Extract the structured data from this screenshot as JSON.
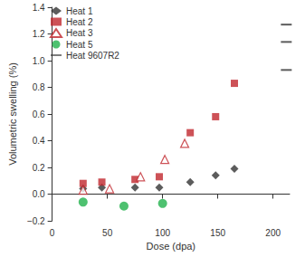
{
  "chart_data": {
    "type": "scatter",
    "x_label": "Dose (dpa)",
    "y_label": "Volumetric swelling (%)",
    "xlim": [
      0,
      215
    ],
    "xticks": [
      0,
      50,
      100,
      150,
      200
    ],
    "ylim": [
      -0.2,
      1.4
    ],
    "yticks": [
      {
        "value": -0.2,
        "label": "−0.2"
      },
      {
        "value": 0,
        "label": "0.0"
      },
      0.2,
      0.4,
      0.6,
      0.8,
      {
        "value": 1.0,
        "label": "1.0"
      },
      1.2,
      1.4
    ],
    "grid": false,
    "legend": "top-left",
    "series": [
      {
        "name": "Heat 1",
        "color": "#333333",
        "marker": "diamond",
        "x": [
          28,
          45,
          75,
          97,
          125,
          148,
          165
        ],
        "values": [
          0.04,
          0.05,
          0.05,
          0.05,
          0.09,
          0.14,
          0.19
        ]
      },
      {
        "name": "Heat 2",
        "color": "#c1272d",
        "marker": "square",
        "x": [
          28,
          45,
          75,
          97,
          125,
          148,
          165
        ],
        "values": [
          0.08,
          0.09,
          0.11,
          0.13,
          0.46,
          0.58,
          0.83
        ]
      },
      {
        "name": "Heat 3",
        "color": "#c1272d",
        "marker": "open-triangle",
        "x": [
          28,
          52,
          80,
          102,
          120
        ],
        "values": [
          0.03,
          0.04,
          0.13,
          0.26,
          0.38
        ]
      },
      {
        "name": "Heat 5",
        "color": "#22b24c",
        "marker": "circle",
        "x": [
          28,
          65,
          100
        ],
        "values": [
          -0.06,
          -0.09,
          -0.07
        ]
      },
      {
        "name": "Heat 9607R2",
        "color": "#333333",
        "marker": "dash",
        "x": [
          212,
          212,
          212
        ],
        "values": [
          1.27,
          1.14,
          0.93
        ]
      }
    ]
  }
}
